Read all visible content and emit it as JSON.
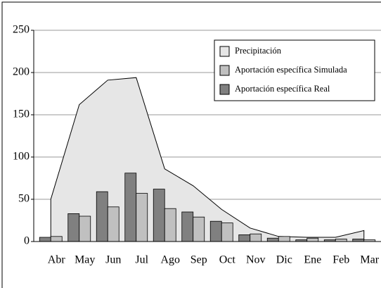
{
  "chart_data": {
    "type": "bar_area",
    "categories": [
      "Abr",
      "May",
      "Jun",
      "Jul",
      "Ago",
      "Sep",
      "Oct",
      "Nov",
      "Dic",
      "Ene",
      "Feb",
      "Mar"
    ],
    "series": [
      {
        "name": "Precipitación",
        "color": "#e6e6e6",
        "kind": "area",
        "values": [
          50,
          162,
          191,
          194,
          86,
          66,
          38,
          16,
          6,
          5,
          5,
          13
        ]
      },
      {
        "name": "Aportación específica Simulada",
        "color": "#c0c0c0",
        "kind": "bar",
        "values": [
          6,
          30,
          41,
          57,
          39,
          29,
          22,
          9,
          6,
          4,
          3,
          2
        ]
      },
      {
        "name": "Aportación específica Real",
        "color": "#808080",
        "kind": "bar",
        "values": [
          5,
          33,
          59,
          81,
          62,
          35,
          24,
          8,
          4,
          2,
          2,
          3
        ]
      }
    ],
    "ylim": [
      0,
      250
    ],
    "yticks": [
      0,
      50,
      100,
      150,
      200,
      250
    ],
    "grid": true,
    "legend": "top-right"
  }
}
